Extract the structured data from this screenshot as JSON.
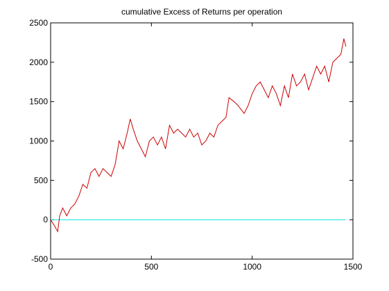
{
  "chart_data": {
    "type": "line",
    "title": "cumulative Excess of Returns per operation",
    "xlim": [
      0,
      1500
    ],
    "xticks": [
      0,
      500,
      1000,
      1500
    ],
    "ylim": [
      -500,
      2500
    ],
    "yticks": [
      -500,
      0,
      500,
      1000,
      1500,
      2000,
      2500
    ],
    "series": [
      {
        "color": "#cc0000",
        "x": [
          0,
          20,
          35,
          45,
          60,
          80,
          100,
          120,
          140,
          160,
          180,
          200,
          220,
          240,
          260,
          280,
          300,
          320,
          340,
          360,
          380,
          395,
          410,
          430,
          450,
          470,
          490,
          510,
          530,
          550,
          570,
          590,
          610,
          630,
          650,
          670,
          690,
          710,
          730,
          750,
          770,
          790,
          810,
          830,
          850,
          870,
          885,
          910,
          930,
          960,
          980,
          1000,
          1020,
          1040,
          1060,
          1080,
          1100,
          1120,
          1140,
          1160,
          1180,
          1200,
          1220,
          1240,
          1260,
          1280,
          1300,
          1320,
          1340,
          1360,
          1380,
          1400,
          1420,
          1440,
          1455,
          1465
        ],
        "values": [
          0,
          -80,
          -150,
          50,
          150,
          50,
          150,
          200,
          300,
          450,
          400,
          600,
          650,
          550,
          650,
          600,
          550,
          700,
          1000,
          900,
          1100,
          1280,
          1150,
          1000,
          900,
          800,
          1000,
          1050,
          950,
          1050,
          900,
          1200,
          1100,
          1150,
          1100,
          1050,
          1150,
          1050,
          1100,
          950,
          1000,
          1100,
          1050,
          1200,
          1250,
          1300,
          1550,
          1500,
          1450,
          1350,
          1450,
          1600,
          1700,
          1750,
          1650,
          1550,
          1700,
          1600,
          1450,
          1700,
          1550,
          1850,
          1700,
          1750,
          1850,
          1650,
          1800,
          1950,
          1850,
          1950,
          1750,
          2000,
          2050,
          2100,
          2300,
          2200
        ]
      },
      {
        "color": "#00e5e5",
        "x": [
          0,
          1465
        ],
        "values": [
          0,
          0
        ]
      }
    ]
  }
}
